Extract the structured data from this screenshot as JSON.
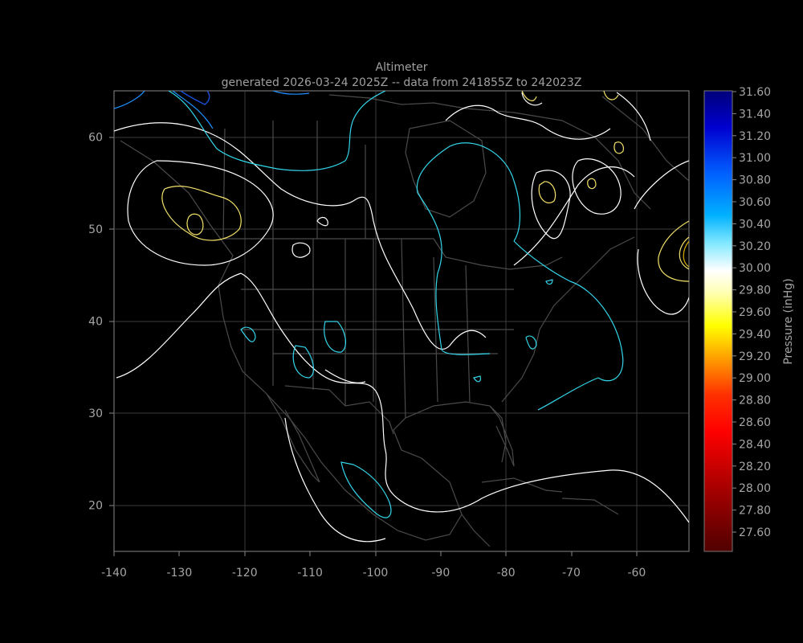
{
  "title": "Altimeter",
  "subtitle": "generated 2026-03-24 2025Z -- data from 241855Z to 242023Z",
  "colorbar": {
    "label": "Pressure (inHg)",
    "ticks": [
      "31.60",
      "31.40",
      "31.20",
      "31.00",
      "30.80",
      "30.60",
      "30.40",
      "30.20",
      "30.00",
      "29.80",
      "29.60",
      "29.40",
      "29.20",
      "29.00",
      "28.80",
      "28.60",
      "28.40",
      "28.20",
      "28.00",
      "27.80",
      "27.60"
    ]
  },
  "chart_data": {
    "type": "contour",
    "title": "Altimeter",
    "subtitle": "generated 2026-03-24 2025Z -- data from 241855Z to 242023Z",
    "xlim": [
      -140,
      -52
    ],
    "ylim": [
      15,
      65
    ],
    "x_ticks": [
      -140,
      -130,
      -120,
      -110,
      -100,
      -90,
      -80,
      -70,
      -60
    ],
    "y_ticks": [
      20,
      30,
      40,
      50,
      60
    ],
    "colorbar_label": "Pressure (inHg)",
    "colorbar_range": [
      27.5,
      31.65
    ],
    "colors": {
      "high": "#0000a0",
      "mid_blue": "#00c8ff",
      "neutral": "#ffffff",
      "yellow": "#ffff00",
      "red": "#ff0000",
      "dark_red": "#600000",
      "background": "#000000",
      "map_outline": "#4a4a4a"
    }
  }
}
